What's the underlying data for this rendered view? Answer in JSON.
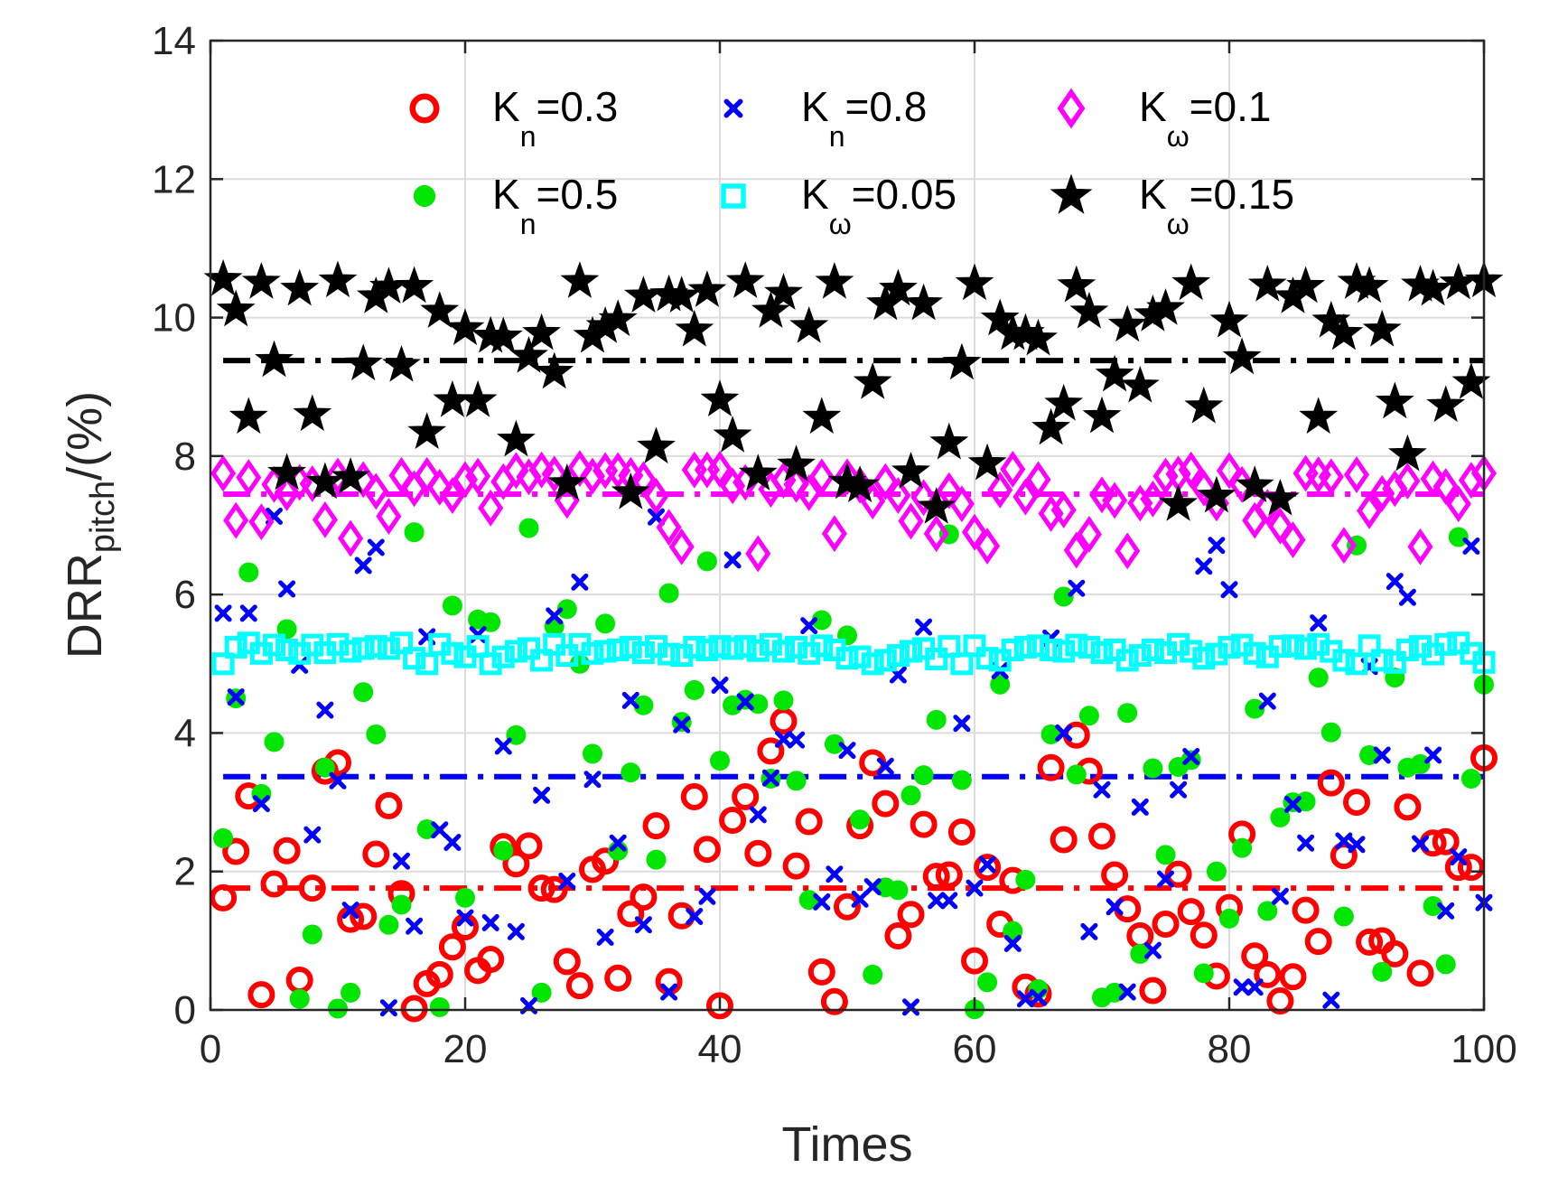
{
  "chart_data": {
    "type": "scatter",
    "title": "",
    "xlabel": "Times",
    "ylabel": {
      "main": "DRR",
      "sub": "pitch",
      "suffix": "/(%)"
    },
    "xlim": [
      0,
      100
    ],
    "ylim": [
      0,
      14
    ],
    "xticks": [
      0,
      20,
      40,
      60,
      80,
      100
    ],
    "yticks": [
      0,
      2,
      4,
      6,
      8,
      10,
      12,
      14
    ],
    "grid": true,
    "legend_position": "top",
    "series": [
      {
        "name": "Kn=0.3",
        "base": "K",
        "sub": "n",
        "value": "=0.3",
        "marker": "circle",
        "color": "#ff0000",
        "mean": 1.76,
        "values": [
          1.62,
          2.29,
          3.09,
          0.22,
          1.82,
          2.3,
          0.43,
          1.76,
          3.45,
          3.57,
          1.31,
          1.35,
          2.25,
          2.95,
          1.68,
          0.02,
          0.38,
          0.51,
          0.91,
          1.2,
          0.57,
          0.73,
          2.36,
          2.11,
          2.37,
          1.76,
          1.74,
          0.7,
          0.35,
          2.03,
          2.15,
          0.46,
          1.39,
          1.63,
          2.66,
          0.41,
          1.36,
          3.08,
          2.32,
          0.06,
          2.74,
          3.08,
          2.26,
          3.74,
          4.17,
          2.08,
          2.72,
          0.55,
          0.12,
          1.49,
          2.66,
          3.57,
          2.98,
          1.07,
          1.38,
          2.68,
          1.93,
          1.95,
          2.57,
          0.71,
          2.06,
          1.24,
          1.87,
          0.33,
          0.23,
          3.5,
          2.46,
          3.97,
          3.45,
          2.51,
          1.95,
          1.46,
          1.07,
          0.28,
          1.24,
          1.96,
          1.42,
          1.08,
          0.49,
          1.48,
          2.54,
          0.78,
          0.51,
          0.13,
          0.48,
          1.44,
          0.99,
          3.28,
          2.23,
          3.0,
          0.98,
          1.0,
          0.81,
          2.93,
          0.53,
          2.41,
          2.43,
          2.06,
          2.06,
          3.64
        ]
      },
      {
        "name": "Kn=0.5",
        "base": "K",
        "sub": "n",
        "value": "=0.5",
        "marker": "dot",
        "color": "#00e600",
        "mean": 3.37,
        "values": [
          2.48,
          4.5,
          6.32,
          3.12,
          3.87,
          5.5,
          0.16,
          1.09,
          3.5,
          0.02,
          0.25,
          4.59,
          3.98,
          1.23,
          1.52,
          6.9,
          2.61,
          0.04,
          5.84,
          1.62,
          5.64,
          5.6,
          2.3,
          3.97,
          6.96,
          0.25,
          5.54,
          5.79,
          5.0,
          3.7,
          5.58,
          2.3,
          3.43,
          4.4,
          2.17,
          6.02,
          4.16,
          4.62,
          6.48,
          3.6,
          4.4,
          4.48,
          4.42,
          3.34,
          4.47,
          3.31,
          1.59,
          5.63,
          3.84,
          5.41,
          2.75,
          0.51,
          1.77,
          1.73,
          3.1,
          3.39,
          4.19,
          6.87,
          3.32,
          0.01,
          0.4,
          4.7,
          1.14,
          1.88,
          0.3,
          3.98,
          5.97,
          3.4,
          4.25,
          0.18,
          0.25,
          4.29,
          0.81,
          3.49,
          2.24,
          3.51,
          3.61,
          0.53,
          2.0,
          1.32,
          2.34,
          4.35,
          1.43,
          2.78,
          3.0,
          3.01,
          4.8,
          4.01,
          1.35,
          6.71,
          3.68,
          0.55,
          4.8,
          3.5,
          3.55,
          1.5,
          0.66,
          6.83,
          3.34,
          4.7
        ]
      },
      {
        "name": "Kn=0.8",
        "base": "K",
        "sub": "n",
        "value": "=0.8",
        "marker": "x",
        "color": "#0000ff",
        "mean": 3.37,
        "values": [
          5.73,
          4.52,
          5.73,
          2.98,
          7.13,
          6.08,
          4.98,
          2.53,
          4.33,
          3.31,
          1.44,
          6.42,
          6.68,
          0.03,
          2.15,
          1.21,
          5.39,
          2.6,
          2.42,
          1.33,
          5.42,
          1.26,
          3.81,
          1.13,
          0.06,
          3.1,
          5.69,
          1.86,
          6.18,
          3.33,
          1.05,
          2.41,
          4.47,
          1.23,
          7.12,
          0.26,
          4.12,
          1.35,
          1.64,
          4.69,
          6.5,
          4.45,
          2.82,
          3.35,
          3.91,
          3.9,
          5.55,
          1.56,
          1.96,
          3.75,
          1.6,
          1.78,
          3.52,
          4.84,
          0.04,
          5.53,
          1.58,
          1.58,
          4.14,
          1.76,
          2.1,
          4.9,
          0.96,
          0.16,
          0.18,
          5.37,
          4.0,
          6.09,
          1.13,
          3.18,
          1.49,
          0.26,
          2.93,
          0.86,
          1.89,
          3.18,
          3.66,
          6.41,
          6.71,
          6.07,
          0.33,
          0.33,
          4.46,
          1.64,
          2.97,
          2.41,
          5.59,
          0.14,
          2.44,
          2.39,
          4.96,
          3.68,
          6.19,
          5.96,
          2.4,
          3.68,
          1.43,
          2.21,
          6.7,
          1.55
        ]
      },
      {
        "name": "Kω=0.05",
        "base": "K",
        "sub": "ω",
        "value": "=0.05",
        "marker": "square",
        "color": "#00ffff",
        "mean": 5.2,
        "values": [
          5.0,
          5.24,
          5.3,
          5.15,
          5.27,
          5.2,
          5.15,
          5.27,
          5.16,
          5.28,
          5.18,
          5.22,
          5.25,
          5.22,
          5.3,
          5.08,
          5.0,
          5.28,
          5.15,
          5.1,
          5.25,
          5.0,
          5.1,
          5.18,
          5.22,
          5.05,
          5.28,
          5.12,
          5.28,
          5.15,
          5.18,
          5.2,
          5.24,
          5.16,
          5.25,
          5.14,
          5.12,
          5.24,
          5.2,
          5.25,
          5.22,
          5.25,
          5.19,
          5.28,
          5.18,
          5.24,
          5.15,
          5.26,
          5.2,
          5.08,
          5.1,
          5.0,
          5.05,
          5.12,
          5.18,
          5.22,
          5.07,
          5.25,
          5.0,
          5.26,
          5.08,
          5.05,
          5.2,
          5.24,
          5.26,
          5.2,
          5.18,
          5.27,
          5.24,
          5.16,
          5.2,
          5.05,
          5.12,
          5.2,
          5.16,
          5.28,
          5.18,
          5.08,
          5.14,
          5.24,
          5.27,
          5.15,
          5.1,
          5.25,
          5.26,
          5.22,
          5.28,
          5.18,
          5.05,
          5.0,
          5.26,
          5.05,
          5.02,
          5.2,
          5.25,
          5.14,
          5.28,
          5.3,
          5.15,
          5.02
        ]
      },
      {
        "name": "Kω=0.1",
        "base": "K",
        "sub": "ω",
        "value": "=0.1",
        "marker": "diamond",
        "color": "#ff00ff",
        "mean": 7.45,
        "values": [
          7.75,
          7.07,
          7.69,
          7.05,
          7.59,
          7.47,
          7.62,
          7.6,
          7.08,
          7.71,
          6.81,
          7.66,
          7.49,
          7.13,
          7.72,
          7.53,
          7.72,
          7.55,
          7.43,
          7.66,
          7.71,
          7.25,
          7.63,
          7.79,
          7.7,
          7.8,
          7.74,
          7.36,
          7.82,
          7.71,
          7.79,
          7.79,
          7.72,
          7.66,
          7.42,
          6.97,
          6.69,
          7.8,
          7.8,
          7.81,
          7.57,
          7.62,
          6.59,
          7.52,
          7.65,
          7.59,
          7.47,
          7.7,
          6.88,
          7.7,
          7.58,
          7.35,
          7.63,
          7.43,
          7.06,
          7.4,
          6.88,
          7.5,
          7.31,
          6.9,
          6.7,
          7.51,
          7.81,
          7.41,
          7.66,
          7.17,
          7.22,
          6.64,
          6.87,
          7.44,
          7.36,
          6.63,
          7.32,
          7.38,
          7.71,
          7.74,
          7.8,
          7.54,
          7.32,
          7.79,
          7.59,
          7.07,
          7.26,
          6.99,
          6.79,
          7.75,
          7.73,
          7.7,
          6.71,
          7.73,
          7.21,
          7.46,
          7.53,
          7.64,
          6.69,
          7.67,
          7.56,
          7.31,
          7.65,
          7.75
        ]
      },
      {
        "name": "Kω=0.15",
        "base": "K",
        "sub": "ω",
        "value": "=0.15",
        "marker": "star",
        "color": "#000000",
        "mean": 9.38,
        "values": [
          10.55,
          10.11,
          8.56,
          10.51,
          9.38,
          7.75,
          10.41,
          8.6,
          7.62,
          10.53,
          7.69,
          9.33,
          10.3,
          10.44,
          9.31,
          10.45,
          8.34,
          10.09,
          8.8,
          9.84,
          8.8,
          9.73,
          9.72,
          8.23,
          9.44,
          9.77,
          9.21,
          7.6,
          10.52,
          9.73,
          9.87,
          9.97,
          7.47,
          10.31,
          8.13,
          10.33,
          10.31,
          9.82,
          10.39,
          8.81,
          8.29,
          10.52,
          7.74,
          10.09,
          10.35,
          7.87,
          9.87,
          8.56,
          10.51,
          7.62,
          7.57,
          9.06,
          10.2,
          10.41,
          7.77,
          10.2,
          7.26,
          8.19,
          9.34,
          10.49,
          7.89,
          9.98,
          9.77,
          9.77,
          9.69,
          8.4,
          8.75,
          10.46,
          10.08,
          8.57,
          9.17,
          9.89,
          9.01,
          10.04,
          10.13,
          7.3,
          10.49,
          8.71,
          7.42,
          9.95,
          9.42,
          7.57,
          10.47,
          7.38,
          10.3,
          10.45,
          8.56,
          9.95,
          9.77,
          10.51,
          10.45,
          9.82,
          8.78,
          8.02,
          10.47,
          10.41,
          8.73,
          10.5,
          9.06,
          10.53
        ]
      }
    ]
  }
}
